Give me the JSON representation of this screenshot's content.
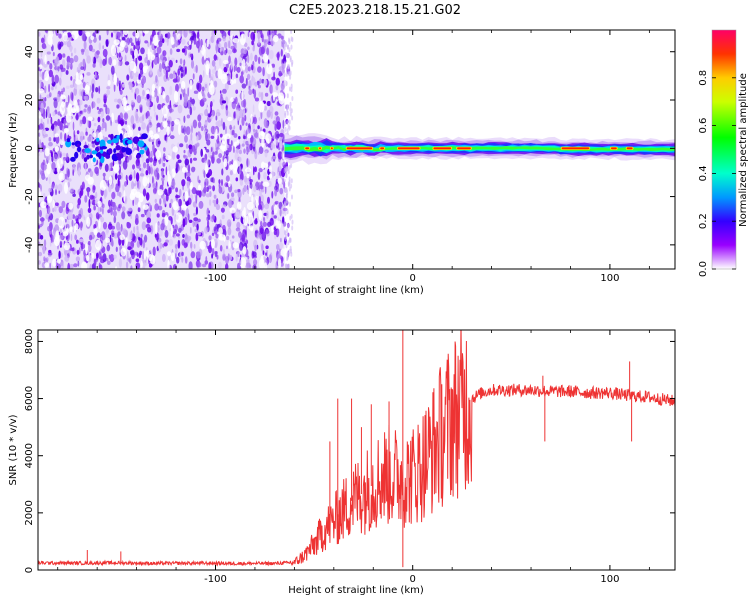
{
  "title": "C2E5.2023.218.15.21.G02",
  "chart_data": [
    {
      "type": "heatmap",
      "xlabel": "Height of straight line (km)",
      "ylabel": "Frequency (Hz)",
      "xlim": [
        -190,
        133
      ],
      "ylim": [
        -50,
        49
      ],
      "xticks": [
        -100,
        0,
        100
      ],
      "yticks": [
        -40,
        -20,
        0,
        20,
        40
      ],
      "noise_region_x": [
        -190,
        -65
      ],
      "signal_start_x": -65,
      "signal_center_y": 0,
      "noise_blob": {
        "x": [
          -175,
          -135
        ],
        "y": [
          -5,
          5
        ]
      },
      "colorbar": {
        "label": "Normalized spectral amplitude",
        "range": [
          0,
          1
        ],
        "ticks": [
          "0.0",
          "0.2",
          "0.4",
          "0.6",
          "0.8"
        ],
        "tick_values": [
          0,
          0.2,
          0.4,
          0.6,
          0.8
        ]
      },
      "grid": false
    },
    {
      "type": "line",
      "xlabel": "Height of straight line (km)",
      "ylabel": "SNR (10 * v/v)",
      "xlim": [
        -190,
        133
      ],
      "ylim": [
        0,
        8400
      ],
      "xticks": [
        -100,
        0,
        100
      ],
      "yticks": [
        0,
        2000,
        4000,
        6000,
        8000
      ],
      "series_color": "#ee3333",
      "grid": false,
      "series": [
        {
          "x": [
            -190,
            -170,
            -150,
            -130,
            -110,
            -90,
            -70,
            -60,
            -55,
            -50,
            -45,
            -40,
            -35,
            -30,
            -25,
            -20,
            -15,
            -10,
            -5,
            0,
            5,
            10,
            15,
            20,
            25,
            30,
            35,
            40,
            50,
            60,
            70,
            80,
            90,
            100,
            110,
            120,
            133
          ],
          "y": [
            250,
            240,
            250,
            230,
            240,
            230,
            230,
            260,
            500,
            900,
            1400,
            1700,
            2100,
            2500,
            2700,
            3000,
            3300,
            3300,
            3200,
            3300,
            3700,
            4200,
            4800,
            5300,
            5700,
            6000,
            6200,
            6300,
            6300,
            6300,
            6250,
            6250,
            6200,
            6200,
            6100,
            6050,
            5900
          ]
        }
      ],
      "spikes": [
        {
          "x": -165,
          "y": 700
        },
        {
          "x": -148,
          "y": 650
        },
        {
          "x": -42,
          "y": 4500
        },
        {
          "x": -38,
          "y": 6000
        },
        {
          "x": -31,
          "y": 6000
        },
        {
          "x": -26,
          "y": 5000
        },
        {
          "x": -21,
          "y": 5800
        },
        {
          "x": -12,
          "y": 5900
        },
        {
          "x": -5,
          "y": 8400
        },
        {
          "x": -5,
          "y": 100
        },
        {
          "x": 66,
          "y": 6800
        },
        {
          "x": 67,
          "y": 4500
        },
        {
          "x": 110,
          "y": 7300
        },
        {
          "x": 111,
          "y": 4500
        }
      ]
    }
  ]
}
